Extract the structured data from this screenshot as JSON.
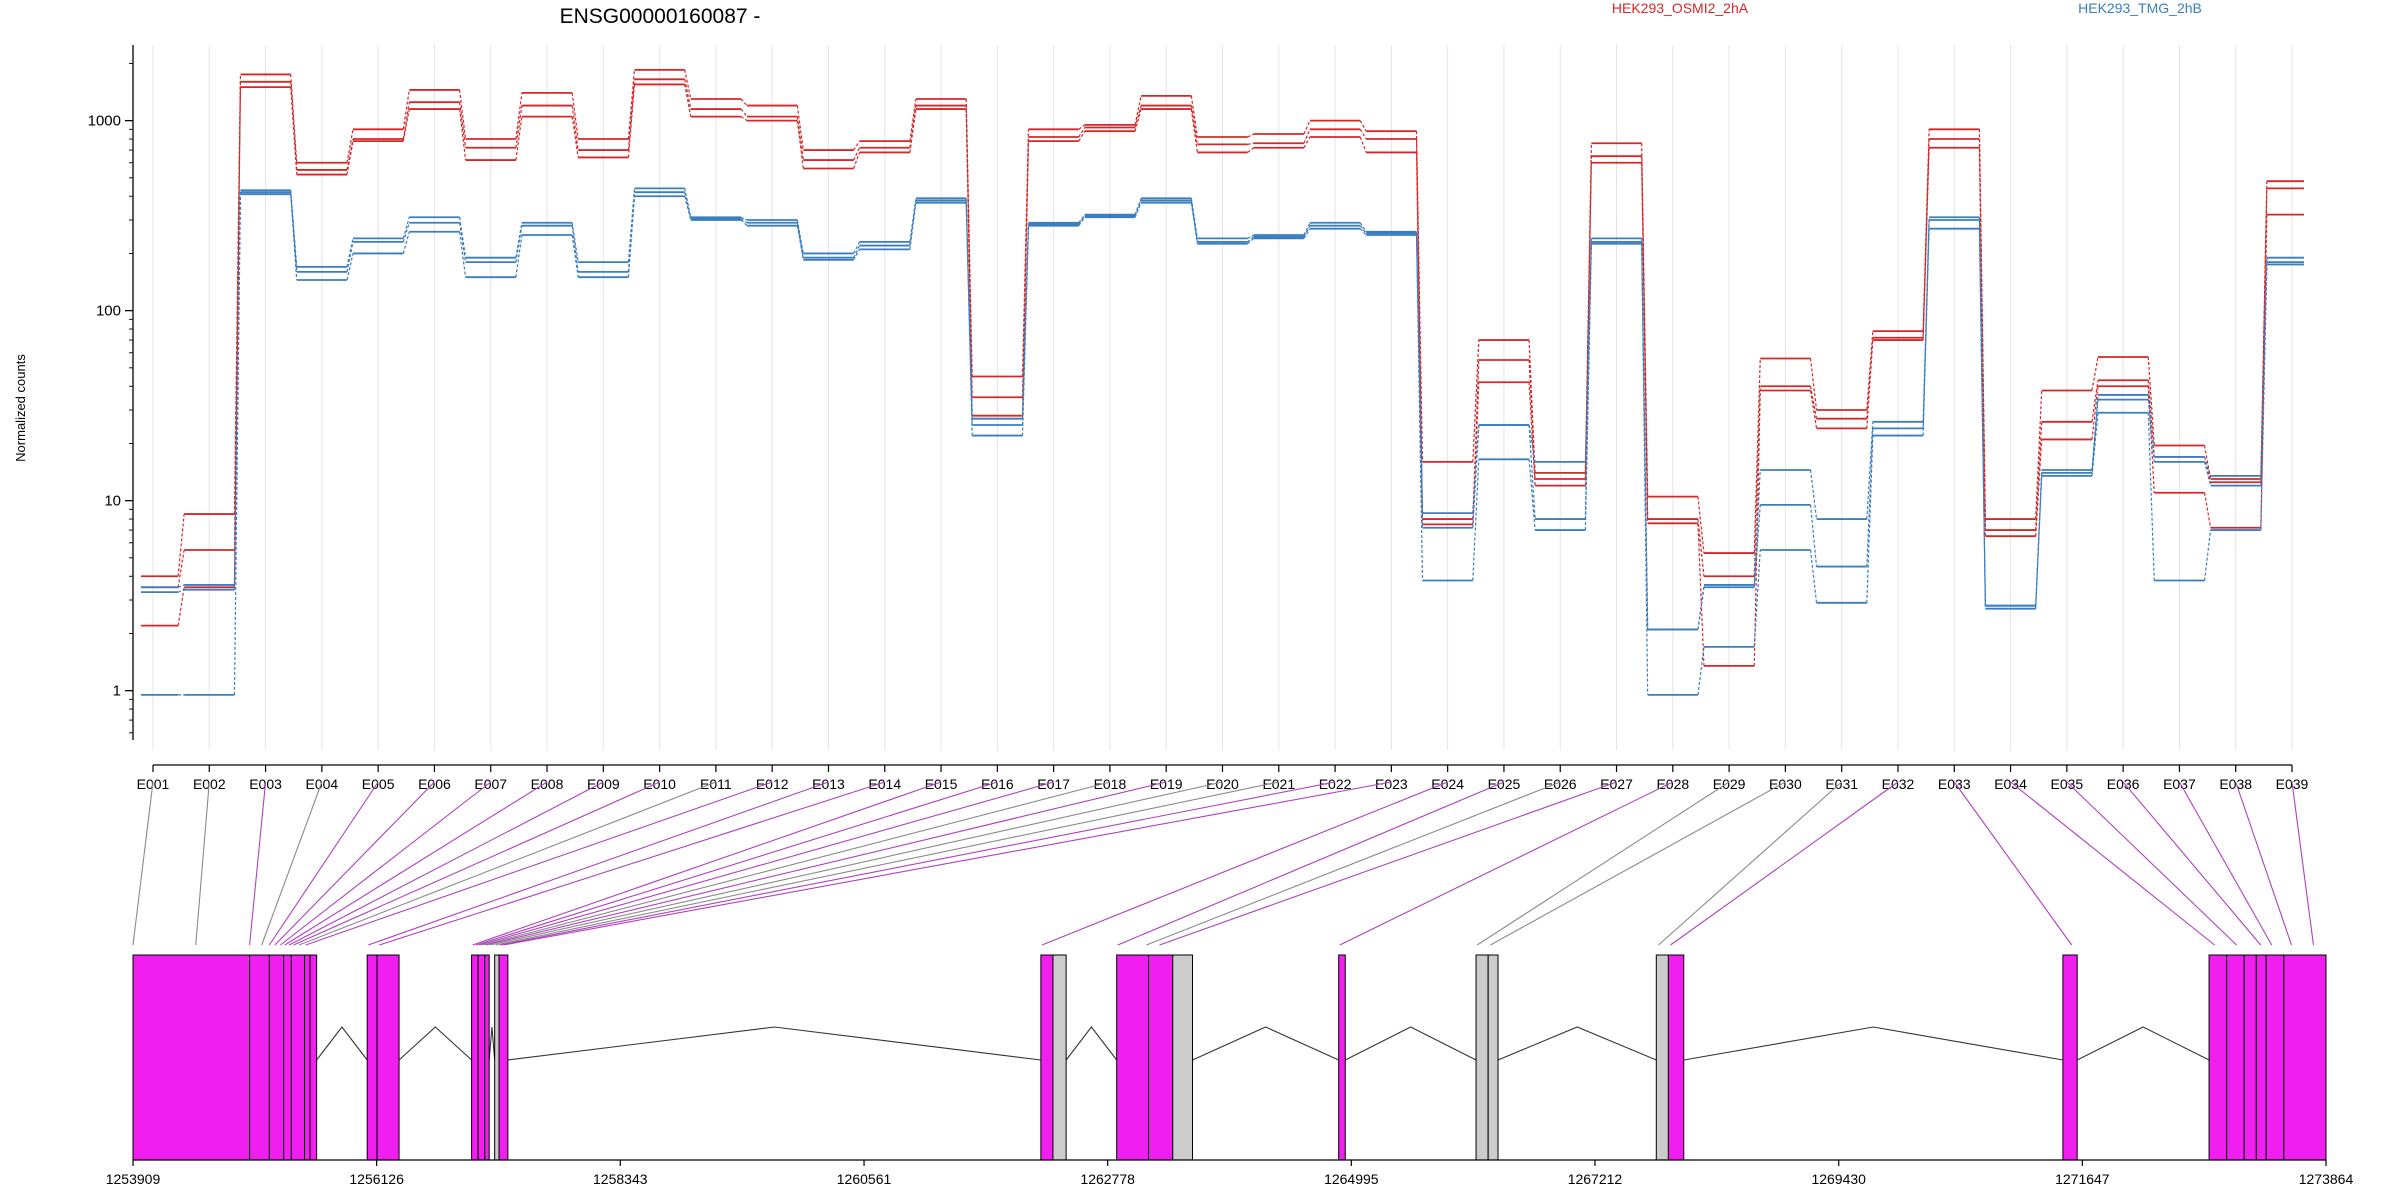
{
  "title": "ENSG00000160087 -",
  "colors": {
    "condition_a": "#d62728",
    "condition_b": "#3a7ebf",
    "exon_used": "#f01ff0",
    "exon_grey": "#cccccc",
    "connector_used": "#b040c0",
    "connector_grey": "#8a8a8a",
    "grid": "#e8e0ee"
  },
  "chart_data": {
    "type": "line",
    "title": "ENSG00000160087 -",
    "ylabel": "Normalized counts",
    "xlabel": "",
    "yscale": "log",
    "ylim": [
      0.55,
      2500
    ],
    "yticks": [
      "1",
      "10",
      "100",
      "1000"
    ],
    "grid": "vertical",
    "legend": [
      "HEK293_OSMI2_2hA",
      "HEK293_TMG_2hB"
    ],
    "categories": [
      "E001",
      "E002",
      "E003",
      "E004",
      "E005",
      "E006",
      "E007",
      "E008",
      "E009",
      "E010",
      "E011",
      "E012",
      "E013",
      "E014",
      "E015",
      "E016",
      "E017",
      "E018",
      "E019",
      "E020",
      "E021",
      "E022",
      "E023",
      "E024",
      "E025",
      "E026",
      "E027",
      "E028",
      "E029",
      "E030",
      "E031",
      "E032",
      "E033",
      "E034",
      "E035",
      "E036",
      "E037",
      "E038",
      "E039"
    ],
    "series": [
      {
        "name": "HEK293_OSMI2_2hA",
        "group": "A",
        "values": [
          4.0,
          8.5,
          1750,
          600,
          900,
          1450,
          800,
          1400,
          800,
          1850,
          1300,
          1200,
          700,
          780,
          1300,
          45,
          900,
          950,
          1350,
          820,
          850,
          1000,
          880,
          16,
          70,
          14,
          760,
          10.5,
          5.3,
          56,
          30,
          78,
          900,
          8.0,
          38,
          57,
          19.5,
          13,
          480
        ]
      },
      {
        "name": "HEK293_OSMI2_2hA",
        "group": "A",
        "values": [
          3.5,
          5.5,
          1600,
          550,
          800,
          1250,
          720,
          1200,
          700,
          1650,
          1150,
          1050,
          620,
          720,
          1200,
          35,
          820,
          920,
          1200,
          750,
          760,
          900,
          800,
          8.0,
          55,
          13,
          650,
          8.0,
          4.0,
          40,
          27,
          72,
          800,
          7.0,
          26,
          43,
          17,
          12.5,
          440
        ]
      },
      {
        "name": "HEK293_OSMI2_2hA",
        "group": "A",
        "values": [
          2.2,
          3.5,
          1500,
          520,
          780,
          1150,
          620,
          1050,
          640,
          1550,
          1050,
          1000,
          560,
          680,
          1150,
          28,
          780,
          880,
          1150,
          680,
          720,
          820,
          680,
          7.5,
          42,
          12,
          600,
          7.6,
          1.35,
          38,
          24,
          70,
          720,
          6.5,
          21,
          40,
          11,
          7.2,
          320
        ]
      },
      {
        "name": "HEK293_TMG_2hB",
        "group": "B",
        "values": [
          3.5,
          3.6,
          430,
          170,
          240,
          310,
          190,
          290,
          180,
          440,
          310,
          300,
          200,
          230,
          390,
          27,
          290,
          320,
          390,
          240,
          250,
          290,
          260,
          8.6,
          25,
          16,
          240,
          2.1,
          3.6,
          14.5,
          8.0,
          26,
          310,
          2.8,
          14.5,
          36,
          17,
          13.5,
          190
        ]
      },
      {
        "name": "HEK293_TMG_2hB",
        "group": "B",
        "values": [
          3.3,
          3.4,
          420,
          160,
          230,
          290,
          180,
          280,
          160,
          420,
          305,
          290,
          190,
          220,
          380,
          25,
          285,
          315,
          380,
          230,
          245,
          280,
          255,
          7.2,
          25,
          8.0,
          230,
          2.1,
          3.5,
          9.5,
          4.5,
          24,
          300,
          2.8,
          14,
          34,
          16,
          12,
          180
        ]
      },
      {
        "name": "HEK293_TMG_2hB",
        "group": "B",
        "values": [
          0.95,
          0.95,
          410,
          145,
          200,
          260,
          150,
          250,
          150,
          400,
          300,
          280,
          185,
          210,
          370,
          22,
          280,
          310,
          370,
          225,
          240,
          270,
          250,
          3.8,
          16.5,
          7.0,
          225,
          0.95,
          1.7,
          5.5,
          2.9,
          22,
          270,
          2.7,
          13.5,
          29,
          3.8,
          7.0,
          175
        ]
      }
    ],
    "gene_model": {
      "coordinate_ticks": [
        "1253909",
        "1256126",
        "1258343",
        "1260561",
        "1262778",
        "1264995",
        "1267212",
        "1269430",
        "1271647",
        "1273864"
      ],
      "range": [
        1253909,
        1273864
      ],
      "exons": [
        {
          "id": "E001",
          "start": 1253909,
          "end": 1254970,
          "used": true
        },
        {
          "id": "E002",
          "start": 1254970,
          "end": 1255150,
          "used": true
        },
        {
          "id": "E003",
          "start": 1255150,
          "end": 1255280,
          "used": true
        },
        {
          "id": "E004",
          "start": 1255280,
          "end": 1255350,
          "used": true
        },
        {
          "id": "E005",
          "start": 1255350,
          "end": 1255470,
          "used": true
        },
        {
          "id": "E006",
          "start": 1255470,
          "end": 1255520,
          "used": true
        },
        {
          "id": "E007",
          "start": 1255520,
          "end": 1255580,
          "used": true
        },
        {
          "id": "E008",
          "start": 1256040,
          "end": 1256130,
          "used": true
        },
        {
          "id": "E009",
          "start": 1256130,
          "end": 1256330,
          "used": true
        },
        {
          "id": "E010",
          "start": 1256990,
          "end": 1257050,
          "used": true
        },
        {
          "id": "E011",
          "start": 1257050,
          "end": 1257110,
          "used": true
        },
        {
          "id": "E012",
          "start": 1257110,
          "end": 1257150,
          "used": true
        },
        {
          "id": "E013",
          "start": 1257200,
          "end": 1257240,
          "used": false
        },
        {
          "id": "E014",
          "start": 1257240,
          "end": 1257320,
          "used": true
        },
        {
          "id": "E015",
          "start": 1262170,
          "end": 1262280,
          "used": true
        },
        {
          "id": "E016",
          "start": 1262280,
          "end": 1262400,
          "used": false
        },
        {
          "id": "E017",
          "start": 1262860,
          "end": 1263150,
          "used": true
        },
        {
          "id": "E018",
          "start": 1263150,
          "end": 1263370,
          "used": true
        },
        {
          "id": "E019",
          "start": 1263370,
          "end": 1263550,
          "used": false
        },
        {
          "id": "E020",
          "start": 1264880,
          "end": 1264940,
          "used": true
        },
        {
          "id": "E021",
          "start": 1266130,
          "end": 1266240,
          "used": false
        },
        {
          "id": "E022",
          "start": 1266240,
          "end": 1266330,
          "used": false
        },
        {
          "id": "E023",
          "start": 1267770,
          "end": 1267880,
          "used": false
        },
        {
          "id": "E024",
          "start": 1267880,
          "end": 1268020,
          "used": true
        },
        {
          "id": "E025",
          "start": 1271470,
          "end": 1271600,
          "used": true
        },
        {
          "id": "E026",
          "start": 1272800,
          "end": 1272960,
          "used": true
        },
        {
          "id": "E027",
          "start": 1272960,
          "end": 1273120,
          "used": true
        },
        {
          "id": "E028",
          "start": 1273120,
          "end": 1273230,
          "used": true
        },
        {
          "id": "E029",
          "start": 1273230,
          "end": 1273320,
          "used": true
        },
        {
          "id": "E030",
          "start": 1273320,
          "end": 1273480,
          "used": true
        },
        {
          "id": "E031",
          "start": 1273480,
          "end": 1273864,
          "used": true
        }
      ],
      "introns": [
        [
          1255580,
          1256040
        ],
        [
          1256330,
          1256990
        ],
        [
          1257150,
          1257200
        ],
        [
          1257320,
          1262170
        ],
        [
          1262400,
          1262860
        ],
        [
          1263550,
          1264880
        ],
        [
          1264940,
          1266130
        ],
        [
          1266330,
          1267770
        ],
        [
          1268020,
          1271470
        ],
        [
          1271600,
          1272800
        ]
      ],
      "connectors": [
        {
          "label": "E001",
          "coord": 1253909,
          "used": false
        },
        {
          "label": "E002",
          "coord": 1254480,
          "used": false
        },
        {
          "label": "E003",
          "coord": 1254970,
          "used": true
        },
        {
          "label": "E004",
          "coord": 1255080,
          "used": false
        },
        {
          "label": "E005",
          "coord": 1255150,
          "used": true
        },
        {
          "label": "E006",
          "coord": 1255200,
          "used": true
        },
        {
          "label": "E007",
          "coord": 1255250,
          "used": true
        },
        {
          "label": "E008",
          "coord": 1255290,
          "used": true
        },
        {
          "label": "E009",
          "coord": 1255330,
          "used": true
        },
        {
          "label": "E010",
          "coord": 1255370,
          "used": true
        },
        {
          "label": "E011",
          "coord": 1255420,
          "used": false
        },
        {
          "label": "E012",
          "coord": 1255480,
          "used": true
        },
        {
          "label": "E013",
          "coord": 1256050,
          "used": true
        },
        {
          "label": "E014",
          "coord": 1256150,
          "used": true
        },
        {
          "label": "E015",
          "coord": 1257000,
          "used": true
        },
        {
          "label": "E016",
          "coord": 1257030,
          "used": true
        },
        {
          "label": "E017",
          "coord": 1257060,
          "used": true
        },
        {
          "label": "E018",
          "coord": 1257090,
          "used": false
        },
        {
          "label": "E019",
          "coord": 1257120,
          "used": true
        },
        {
          "label": "E020",
          "coord": 1257160,
          "used": false
        },
        {
          "label": "E021",
          "coord": 1257210,
          "used": false
        },
        {
          "label": "E022",
          "coord": 1257250,
          "used": true
        },
        {
          "label": "E023",
          "coord": 1257280,
          "used": true
        },
        {
          "label": "E024",
          "coord": 1262180,
          "used": true
        },
        {
          "label": "E025",
          "coord": 1262870,
          "used": true
        },
        {
          "label": "E026",
          "coord": 1263130,
          "used": false
        },
        {
          "label": "E027",
          "coord": 1263250,
          "used": true
        },
        {
          "label": "E028",
          "coord": 1264890,
          "used": true
        },
        {
          "label": "E029",
          "coord": 1266140,
          "used": false
        },
        {
          "label": "E030",
          "coord": 1266260,
          "used": false
        },
        {
          "label": "E031",
          "coord": 1267790,
          "used": false
        },
        {
          "label": "E032",
          "coord": 1267900,
          "used": true
        },
        {
          "label": "E033",
          "coord": 1271550,
          "used": true
        },
        {
          "label": "E034",
          "coord": 1272850,
          "used": true
        },
        {
          "label": "E035",
          "coord": 1273050,
          "used": true
        },
        {
          "label": "E036",
          "coord": 1273270,
          "used": true
        },
        {
          "label": "E037",
          "coord": 1273370,
          "used": true
        },
        {
          "label": "E038",
          "coord": 1273550,
          "used": true
        },
        {
          "label": "E039",
          "coord": 1273750,
          "used": true
        }
      ]
    }
  }
}
